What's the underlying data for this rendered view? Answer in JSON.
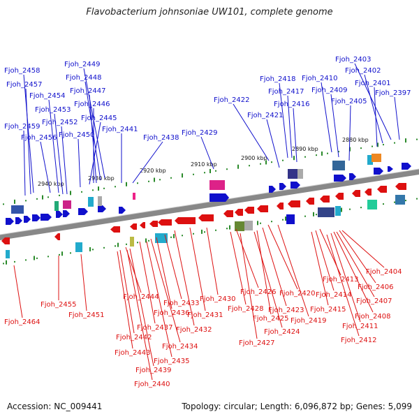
{
  "title": "Flavobacterium johnsoniae UW101, complete genome",
  "footer": {
    "accession": "Accession: NC_009441",
    "topology": "Topology: circular; Length: 6,096,872 bp; Genes: 5,099"
  },
  "colors": {
    "forward": "#1010cc",
    "reverse": "#dd1010",
    "backbone": "#888888",
    "tick": "#2a8a2a"
  },
  "kbp_labels": [
    "2880 kbp",
    "2890 kbp",
    "2900 kbp",
    "2910 kbp",
    "2920 kbp",
    "2930 kbp",
    "2940 kbp"
  ],
  "top_genes": [
    "Fjoh_2403",
    "Fjoh_2402",
    "Fjoh_2401",
    "Fjoh_2397",
    "Fjoh_2410",
    "Fjoh_2409",
    "Fjoh_2405",
    "Fjoh_2418",
    "Fjoh_2417",
    "Fjoh_2416",
    "Fjoh_2421",
    "Fjoh_2422",
    "Fjoh_2429",
    "Fjoh_2438",
    "Fjoh_2441",
    "Fjoh_2449",
    "Fjoh_2448",
    "Fjoh_2447",
    "Fjoh_2446",
    "Fjoh_2445",
    "Fjoh_2450",
    "Fjoh_2458",
    "Fjoh_2457",
    "Fjoh_2454",
    "Fjoh_2453",
    "Fjoh_2452",
    "Fjoh_2459",
    "Fjoh_2456"
  ],
  "bottom_genes": [
    "Fjoh_2404",
    "Fjoh_2406",
    "Fjoh_2407",
    "Fjoh_2408",
    "Fjoh_2411",
    "Fjoh_2412",
    "Fjoh_2413",
    "Fjoh_2414",
    "Fjoh_2415",
    "Fjoh_2420",
    "Fjoh_2419",
    "Fjoh_2426",
    "Fjoh_2423",
    "Fjoh_2428",
    "Fjoh_2425",
    "Fjoh_2424",
    "Fjoh_2427",
    "Fjoh_2430",
    "Fjoh_2431",
    "Fjoh_2432",
    "Fjoh_2433",
    "Fjoh_2436",
    "Fjoh_2434",
    "Fjoh_2435",
    "Fjoh_2437",
    "Fjoh_2444",
    "Fjoh_2442",
    "Fjoh_2443",
    "Fjoh_2439",
    "Fjoh_2440",
    "Fjoh_2455",
    "Fjoh_2451",
    "Fjoh_2464"
  ]
}
